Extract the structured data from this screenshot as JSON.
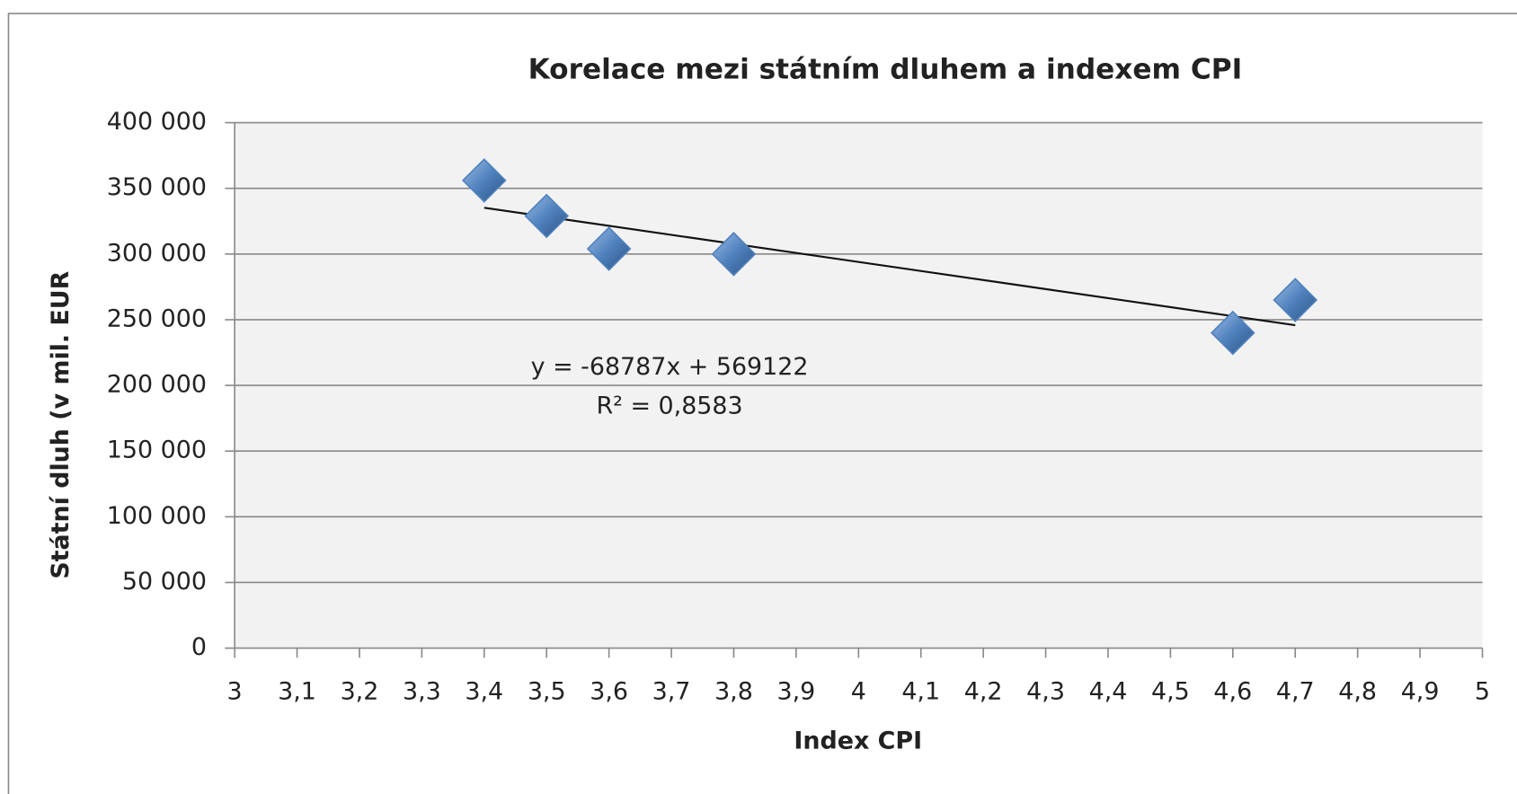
{
  "chart_data": {
    "type": "scatter",
    "title": "Korelace mezi státním dluhem a  indexem CPI",
    "x_label": "Index CPI",
    "y_label": "Státní dluh (v mil. EUR",
    "series": [
      {
        "name": "Státní dluh",
        "color": "#4f81bd",
        "x": [
          3.4,
          3.5,
          3.6,
          3.8,
          4.6,
          4.7
        ],
        "values": [
          356000,
          329000,
          304000,
          300000,
          240000,
          265000
        ]
      }
    ],
    "trendline": {
      "slope": -68787,
      "intercept": 569122,
      "equation": "y = -68787x + 569122",
      "r_squared": "R² = 0,8583"
    },
    "xlim": [
      3,
      5
    ],
    "xticks": [
      3,
      {
        "value": 3.1,
        "label": "3,1"
      },
      {
        "value": 3.2,
        "label": "3,2"
      },
      {
        "value": 3.3,
        "label": "3,3"
      },
      {
        "value": 3.4,
        "label": "3,4"
      },
      {
        "value": 3.5,
        "label": "3,5"
      },
      {
        "value": 3.6,
        "label": "3,6"
      },
      {
        "value": 3.7,
        "label": "3,7"
      },
      {
        "value": 3.8,
        "label": "3,8"
      },
      {
        "value": 3.9,
        "label": "3,9"
      },
      4,
      {
        "value": 4.1,
        "label": "4,1"
      },
      {
        "value": 4.2,
        "label": "4,2"
      },
      {
        "value": 4.3,
        "label": "4,3"
      },
      {
        "value": 4.4,
        "label": "4,4"
      },
      {
        "value": 4.5,
        "label": "4,5"
      },
      {
        "value": 4.6,
        "label": "4,6"
      },
      {
        "value": 4.7,
        "label": "4,7"
      },
      {
        "value": 4.8,
        "label": "4,8"
      },
      {
        "value": 4.9,
        "label": "4,9"
      },
      5
    ],
    "ylim": [
      0,
      400000
    ],
    "yticks": [
      0,
      {
        "value": 50000,
        "label": "50 000"
      },
      {
        "value": 100000,
        "label": "100 000"
      },
      {
        "value": 150000,
        "label": "150 000"
      },
      {
        "value": 200000,
        "label": "200 000"
      },
      {
        "value": 250000,
        "label": "250 000"
      },
      {
        "value": 300000,
        "label": "300 000"
      },
      {
        "value": 350000,
        "label": "350 000"
      },
      {
        "value": 400000,
        "label": "400 000"
      }
    ],
    "grid": true
  }
}
